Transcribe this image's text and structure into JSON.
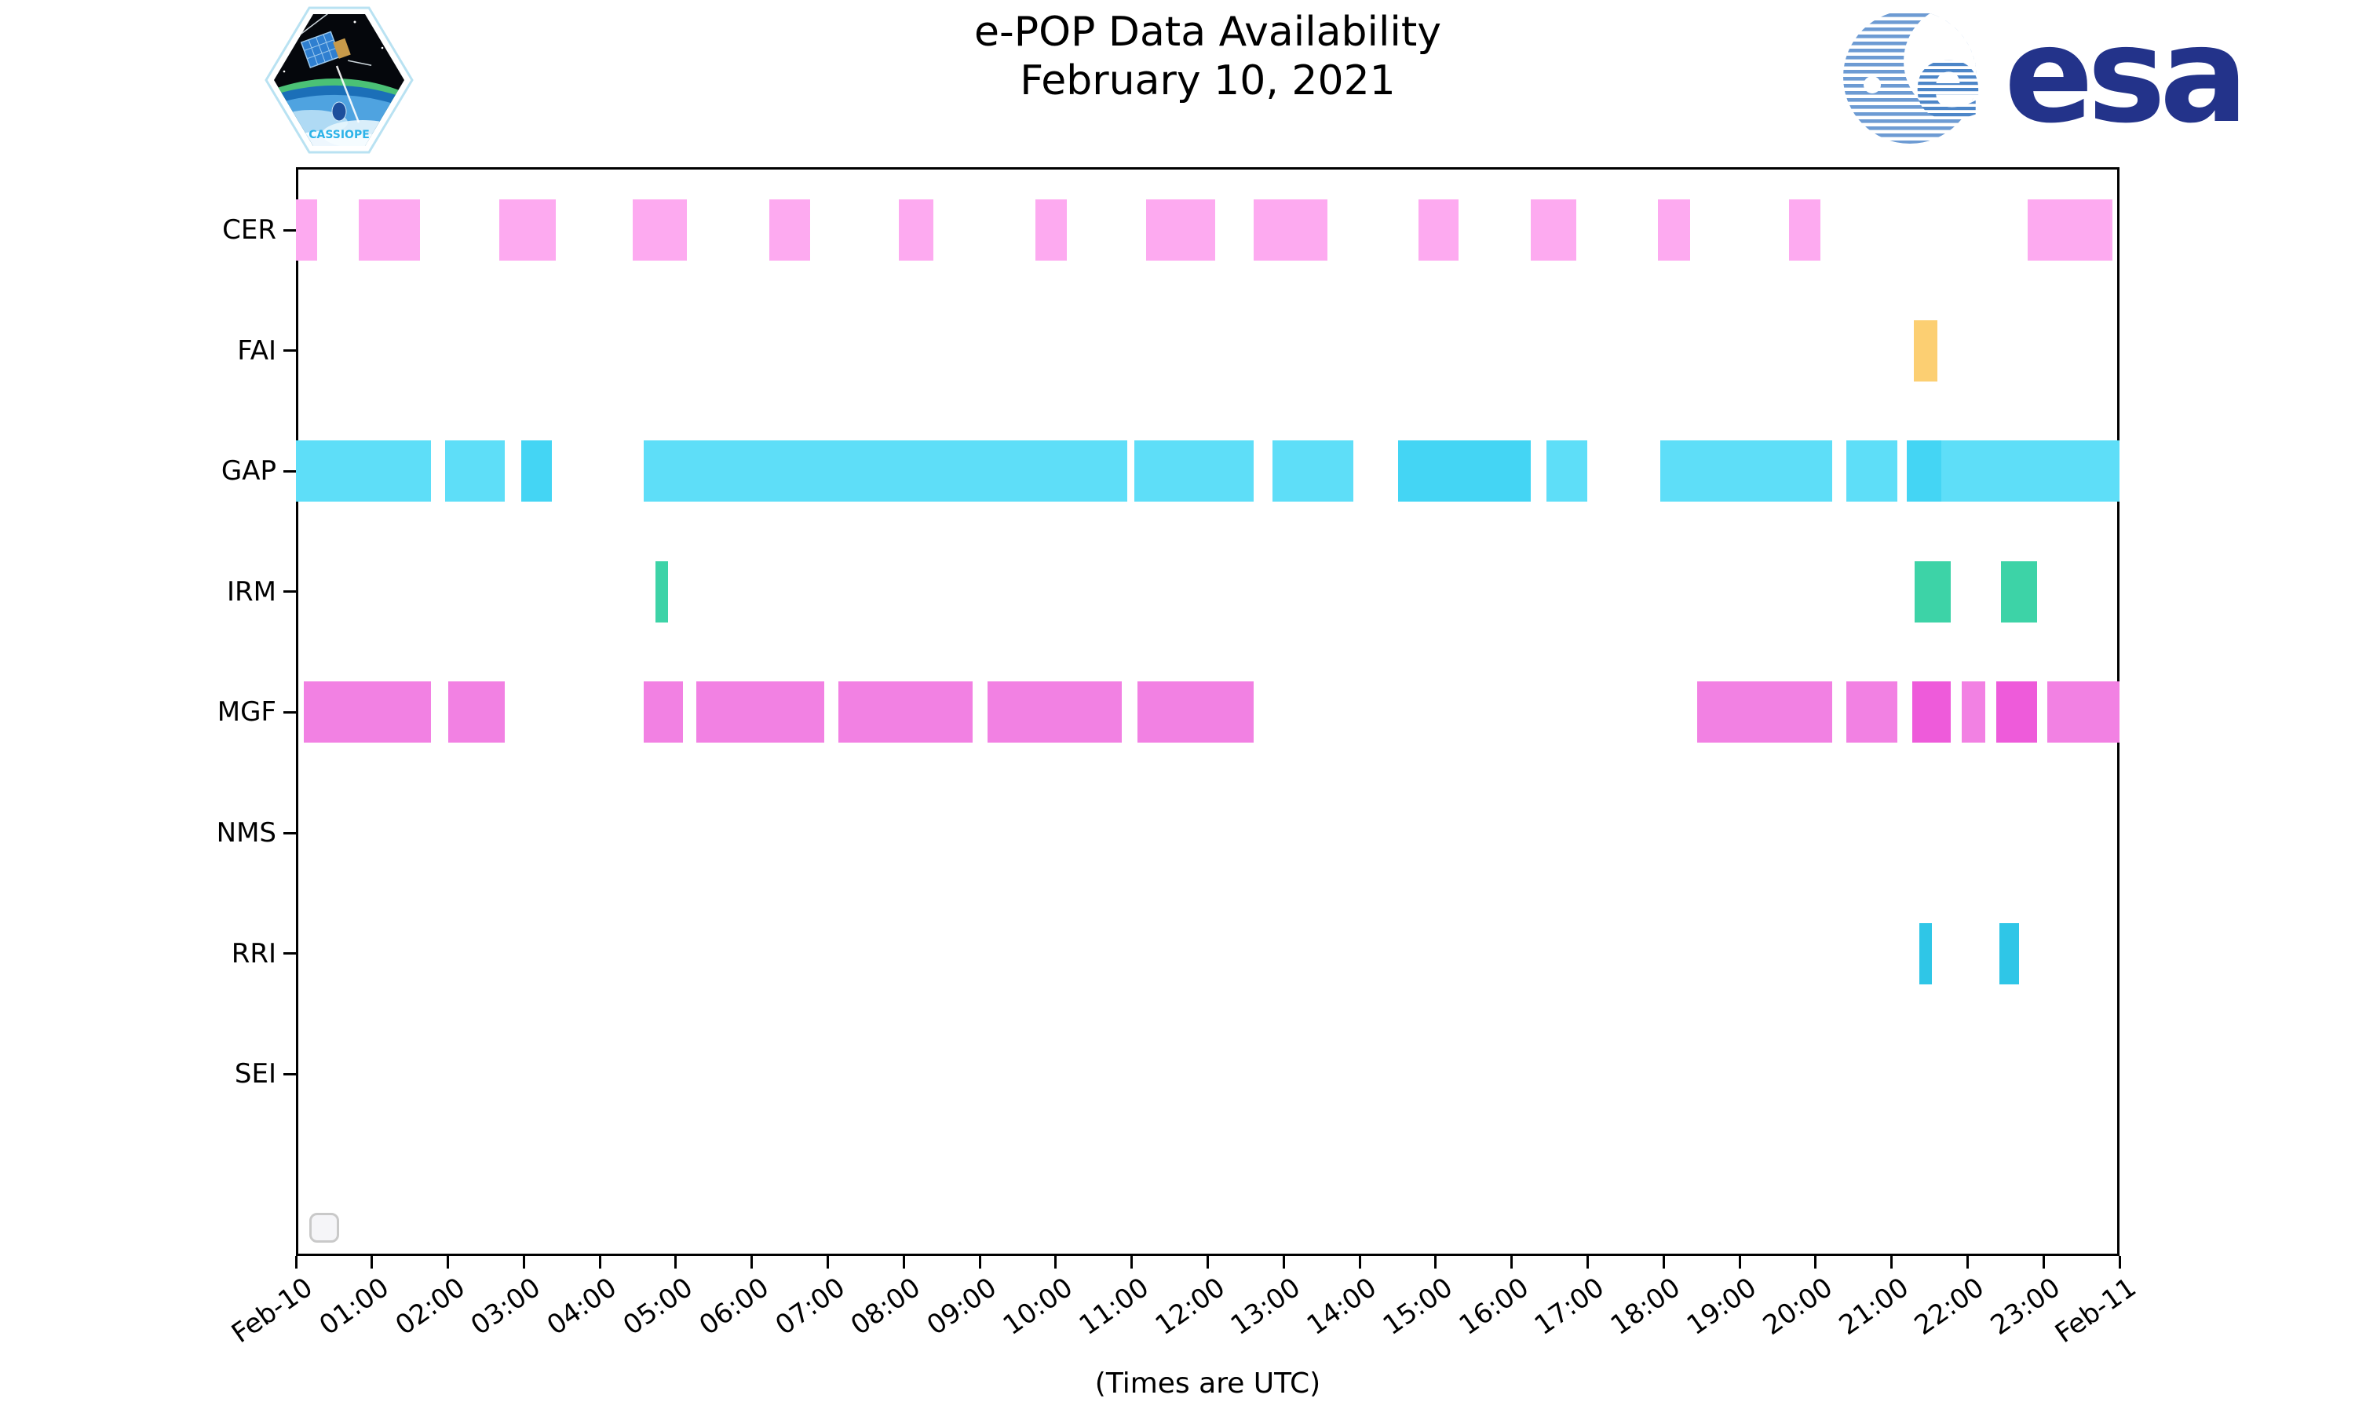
{
  "title": {
    "line1": "e-POP Data Availability",
    "line2": "February 10, 2021"
  },
  "x_axis": {
    "label": "(Times are UTC)",
    "ticks": [
      "Feb-10",
      "01:00",
      "02:00",
      "03:00",
      "04:00",
      "05:00",
      "06:00",
      "07:00",
      "08:00",
      "09:00",
      "10:00",
      "11:00",
      "12:00",
      "13:00",
      "14:00",
      "15:00",
      "16:00",
      "17:00",
      "18:00",
      "19:00",
      "20:00",
      "21:00",
      "22:00",
      "23:00",
      "Feb-11"
    ]
  },
  "y_axis": {
    "rows": [
      "CER",
      "FAI",
      "GAP",
      "IRM",
      "MGF",
      "NMS",
      "RRI",
      "SEI"
    ]
  },
  "logos": {
    "cassiope": "CASSIOPE",
    "esa": "esa"
  },
  "legend": {
    "visible": true,
    "entries": []
  },
  "colors": {
    "CER": {
      "light": "#fdaaf0"
    },
    "FAI": {
      "light": "#fccf72"
    },
    "GAP": {
      "light": "#5edef8",
      "dark": "#44d5f4"
    },
    "IRM": {
      "light": "#3dd3a7"
    },
    "MGF": {
      "light": "#f281e3",
      "dark": "#ee5bda"
    },
    "NMS": {
      "light": "#999999"
    },
    "RRI": {
      "light": "#2fc6e7"
    },
    "SEI": {
      "light": "#999999"
    }
  },
  "chart_data": {
    "type": "bar",
    "subtype": "availability-timeline (broken horizontal bars)",
    "title": "e-POP Data Availability — February 10, 2021",
    "xlabel": "(Times are UTC)",
    "x_range_hours": [
      0,
      24
    ],
    "x_tick_interval_hours": 1,
    "grid": false,
    "series": [
      {
        "name": "CER",
        "intervals": [
          {
            "start": 0.0,
            "end": 0.28
          },
          {
            "start": 0.83,
            "end": 1.63
          },
          {
            "start": 2.68,
            "end": 3.42
          },
          {
            "start": 4.43,
            "end": 5.14
          },
          {
            "start": 6.23,
            "end": 6.77
          },
          {
            "start": 7.93,
            "end": 8.39
          },
          {
            "start": 9.73,
            "end": 10.15
          },
          {
            "start": 11.19,
            "end": 12.1
          },
          {
            "start": 12.6,
            "end": 13.58
          },
          {
            "start": 14.77,
            "end": 15.3
          },
          {
            "start": 16.25,
            "end": 16.85
          },
          {
            "start": 17.93,
            "end": 18.35
          },
          {
            "start": 19.65,
            "end": 20.06
          },
          {
            "start": 22.79,
            "end": 23.91
          }
        ]
      },
      {
        "name": "FAI",
        "intervals": [
          {
            "start": 21.29,
            "end": 21.6
          }
        ]
      },
      {
        "name": "GAP",
        "intervals": [
          {
            "start": 0.0,
            "end": 1.78
          },
          {
            "start": 1.96,
            "end": 2.75
          },
          {
            "start": 2.96,
            "end": 3.37,
            "shade": "dark"
          },
          {
            "start": 4.58,
            "end": 10.94
          },
          {
            "start": 11.03,
            "end": 12.6
          },
          {
            "start": 12.85,
            "end": 13.92
          },
          {
            "start": 14.51,
            "end": 16.25,
            "shade": "dark"
          },
          {
            "start": 16.46,
            "end": 17.0
          },
          {
            "start": 17.96,
            "end": 20.22
          },
          {
            "start": 20.4,
            "end": 21.08
          },
          {
            "start": 21.2,
            "end": 21.65,
            "shade": "dark"
          },
          {
            "start": 21.65,
            "end": 24.0
          }
        ]
      },
      {
        "name": "IRM",
        "intervals": [
          {
            "start": 4.73,
            "end": 4.9
          },
          {
            "start": 21.3,
            "end": 21.78
          },
          {
            "start": 22.44,
            "end": 22.92
          }
        ]
      },
      {
        "name": "MGF",
        "intervals": [
          {
            "start": 0.1,
            "end": 1.78
          },
          {
            "start": 2.0,
            "end": 2.75
          },
          {
            "start": 4.58,
            "end": 5.09
          },
          {
            "start": 5.27,
            "end": 6.95
          },
          {
            "start": 7.14,
            "end": 8.91
          },
          {
            "start": 9.1,
            "end": 10.87
          },
          {
            "start": 11.08,
            "end": 12.6
          },
          {
            "start": 18.44,
            "end": 20.22
          },
          {
            "start": 20.4,
            "end": 21.08
          },
          {
            "start": 21.27,
            "end": 21.78,
            "shade": "dark"
          },
          {
            "start": 21.92,
            "end": 22.23
          },
          {
            "start": 22.38,
            "end": 22.92,
            "shade": "dark"
          },
          {
            "start": 23.05,
            "end": 24.0
          }
        ]
      },
      {
        "name": "NMS",
        "intervals": []
      },
      {
        "name": "RRI",
        "intervals": [
          {
            "start": 21.37,
            "end": 21.53
          },
          {
            "start": 22.42,
            "end": 22.68
          }
        ]
      },
      {
        "name": "SEI",
        "intervals": []
      }
    ]
  }
}
